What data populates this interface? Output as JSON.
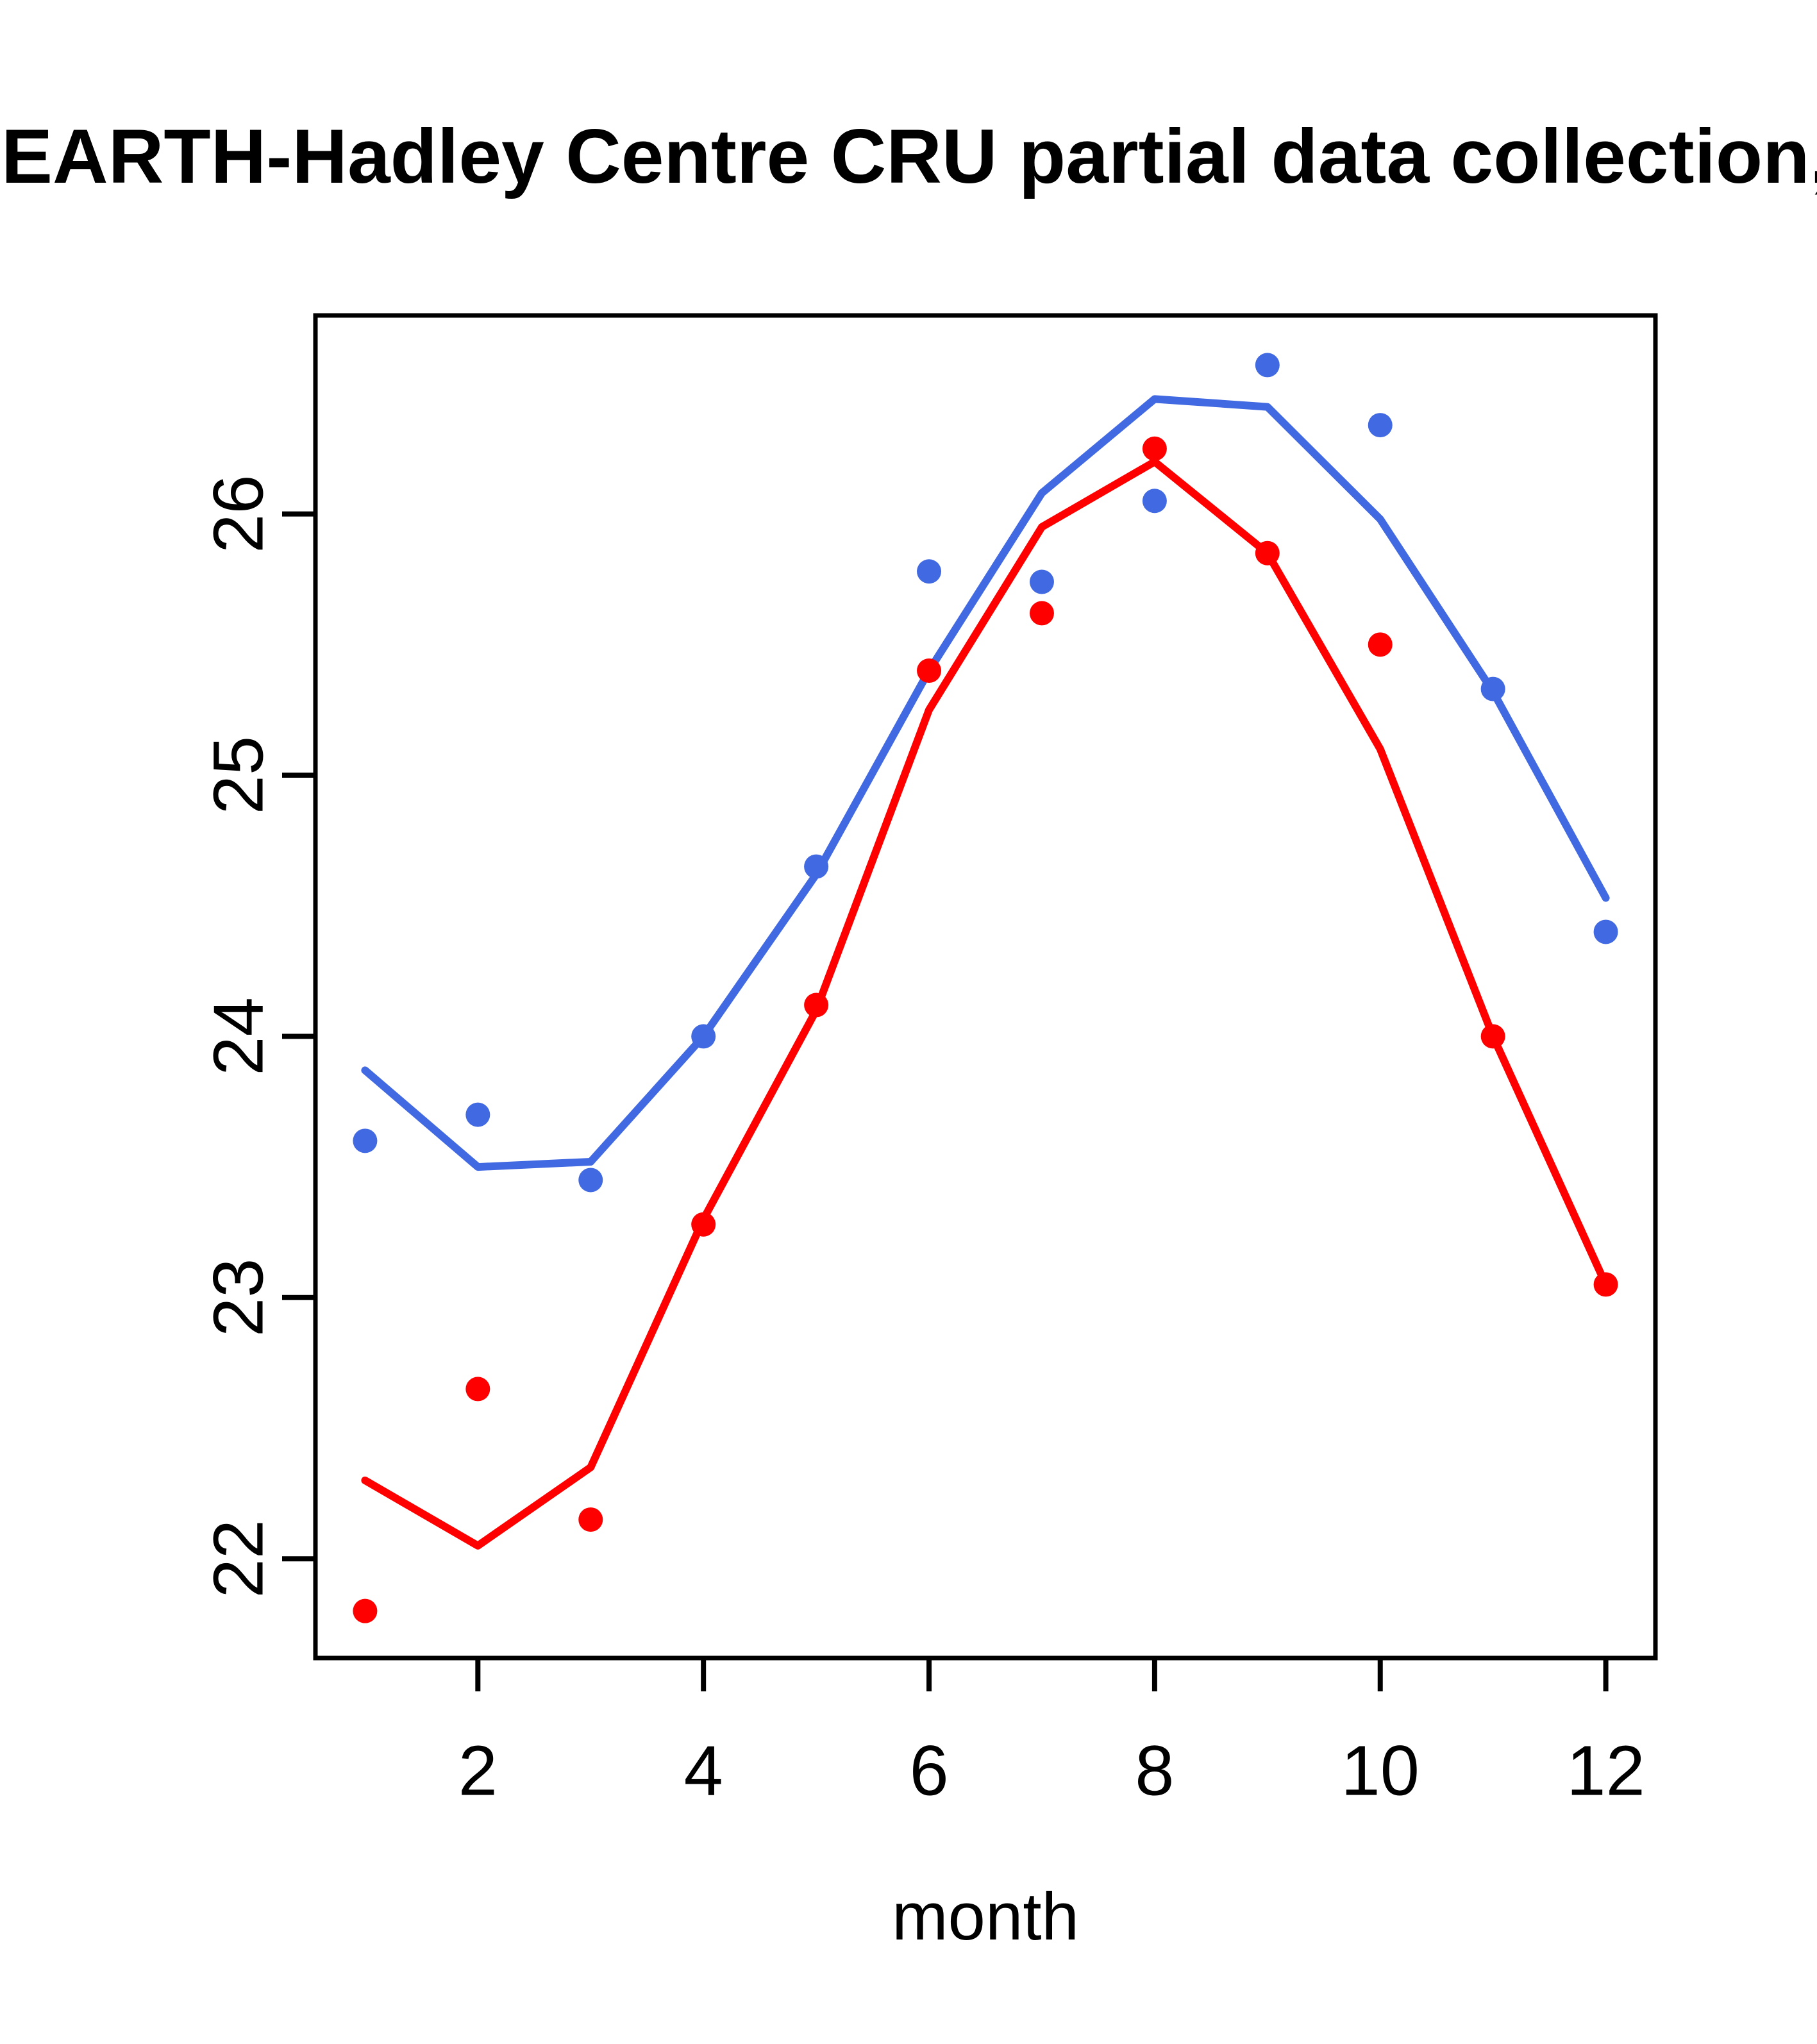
{
  "title": "EARTH-Hadley Centre  CRU partial data collection,",
  "colors": {
    "blue_series": "#4169E1",
    "red_series": "#FF0000",
    "axis": "#000000",
    "background": "#FFFFFF"
  },
  "chart_data": {
    "type": "line",
    "title": "EARTH-Hadley Centre  CRU partial data collection,",
    "xlabel": "month",
    "ylabel": "",
    "x": [
      1,
      2,
      3,
      4,
      5,
      6,
      7,
      8,
      9,
      10,
      11,
      12
    ],
    "xticks": [
      2,
      4,
      6,
      8,
      10,
      12
    ],
    "yticks": [
      22,
      23,
      24,
      25,
      26
    ],
    "xlim": [
      0.56,
      12.44
    ],
    "ylim": [
      21.62,
      26.76
    ],
    "grid": false,
    "legend": "none",
    "series": [
      {
        "name": "blue-smooth-line",
        "kind": "line",
        "color": "#4169E1",
        "values": [
          23.87,
          23.5,
          23.52,
          24.0,
          24.62,
          25.4,
          26.08,
          26.44,
          26.41,
          25.98,
          25.32,
          24.53
        ]
      },
      {
        "name": "blue-points",
        "kind": "points",
        "color": "#4169E1",
        "values": [
          23.6,
          23.7,
          23.45,
          24.0,
          24.65,
          25.78,
          25.74,
          26.05,
          26.57,
          26.34,
          25.33,
          24.4
        ]
      },
      {
        "name": "red-smooth-line",
        "kind": "line",
        "color": "#FF0000",
        "values": [
          22.3,
          22.05,
          22.35,
          23.3,
          24.1,
          25.25,
          25.95,
          26.2,
          25.85,
          25.1,
          24.0,
          23.05
        ]
      },
      {
        "name": "red-points",
        "kind": "points",
        "color": "#FF0000",
        "values": [
          21.8,
          22.65,
          22.15,
          23.28,
          24.12,
          25.4,
          25.62,
          26.25,
          25.85,
          25.5,
          24.0,
          23.05
        ]
      }
    ]
  }
}
